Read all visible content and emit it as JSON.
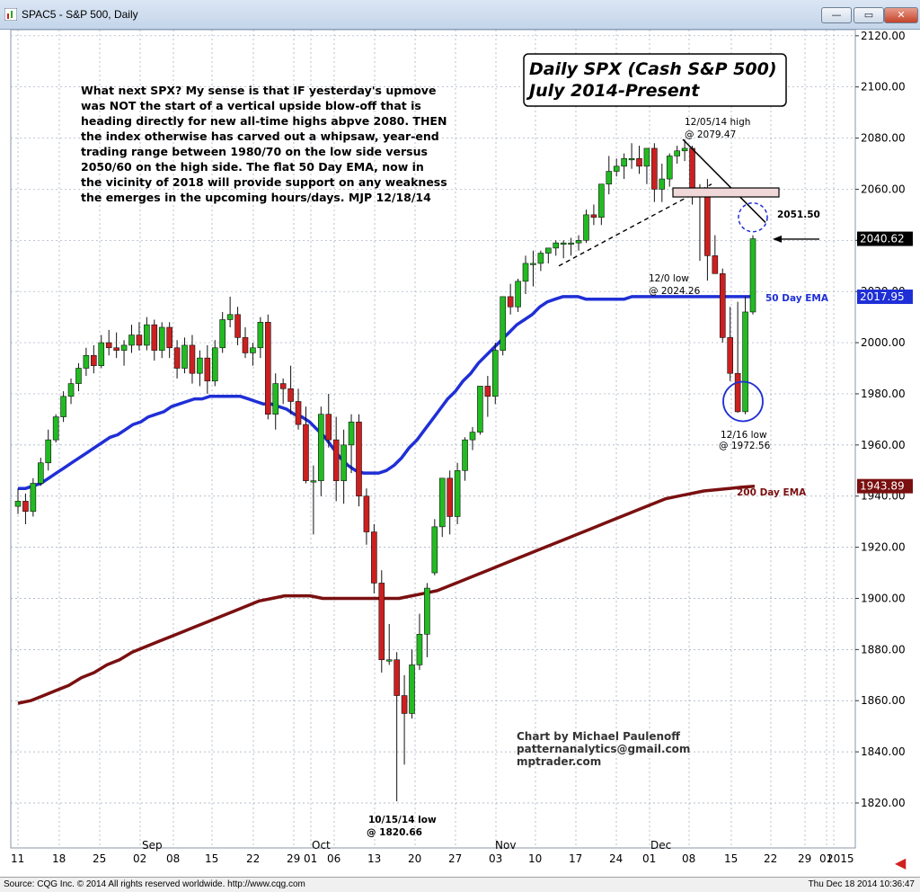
{
  "window": {
    "title": "SPAC5 - S&P 500, Daily",
    "minimize_label": "—",
    "restore_label": "▭",
    "close_label": "✕"
  },
  "status": {
    "source": "Source: CQG Inc. © 2014 All rights reserved worldwide. http://www.cqg.com",
    "datetime": "Thu Dec 18 2014 10:36:47"
  },
  "colors": {
    "up": "#22bb22",
    "down": "#cc2020",
    "ema50": "#1f2fd6",
    "ema200": "#7a1010",
    "grid": "#9aa8bb",
    "price_tag": "#000000"
  },
  "chart_data": {
    "type": "candlestick",
    "title_line1": "Daily SPX (Cash S&P 500)",
    "title_line2": "July 2014-Present",
    "commentary": [
      "What next SPX? My sense is that IF yesterday's upmove",
      "was NOT the start of a vertical upside blow-off that is",
      "heading directly for new all-time highs abpve 2080. THEN",
      "the index otherwise has carved out a whipsaw, year-end",
      "trading range between 1980/70 on the low side versus",
      "2050/60 on the high side. The flat 50 Day EMA, now in",
      "the vicinity of 2018 will provide support on any weakness",
      "the emerges in the upcoming hours/days.  MJP 12/18/14"
    ],
    "credits": [
      "Chart by Michael Paulenoff",
      "patternanalytics@gmail.com",
      "mptrader.com"
    ],
    "ylim": [
      1812,
      2124
    ],
    "y_ticks": [
      1820,
      1840,
      1860,
      1880,
      1900,
      1920,
      1940,
      1960,
      1980,
      2000,
      2020,
      2040,
      2060,
      2080,
      2100,
      2120
    ],
    "y_tick_labels": [
      "1820.00",
      "1840.00",
      "1860.00",
      "1880.00",
      "1900.00",
      "1920.00",
      "1940.00",
      "1960.00",
      "1980.00",
      "2000.00",
      "2020.00",
      "2040.00",
      "2060.00",
      "2080.00",
      "2100.00",
      "2120.00"
    ],
    "x_day_labels": [
      "11",
      "18",
      "25",
      "02",
      "08",
      "15",
      "22",
      "29",
      "01",
      "06",
      "13",
      "20",
      "27",
      "03",
      "10",
      "17",
      "24",
      "01",
      "08",
      "15",
      "22",
      "29",
      "01",
      "2015"
    ],
    "x_month_labels": [
      "Sep",
      "Oct",
      "Nov",
      "Dec"
    ],
    "price_tags": [
      {
        "label": "2040.62",
        "value": 2040.62
      },
      {
        "label": "2017.95",
        "value": 2017.95
      },
      {
        "label": "1943.89",
        "value": 1943.89
      }
    ],
    "annotations": [
      {
        "text": "12/05/14 high",
        "text2": "@ 2079.47"
      },
      {
        "text": "2051.50"
      },
      {
        "text": "12/0 low",
        "text2": "@ 2024.26"
      },
      {
        "text": "50 Day EMA"
      },
      {
        "text": "12/16 low",
        "text2": "@ 1972.56"
      },
      {
        "text": "200 Day EMA"
      },
      {
        "text": "10/15/14 low",
        "text2": "@ 1820.66"
      }
    ],
    "candles": [
      [
        1936,
        1943,
        1933,
        1938
      ],
      [
        1938,
        1941,
        1929,
        1934
      ],
      [
        1934,
        1947,
        1932,
        1945
      ],
      [
        1945,
        1955,
        1944,
        1953
      ],
      [
        1953,
        1966,
        1950,
        1962
      ],
      [
        1962,
        1972,
        1961,
        1971
      ],
      [
        1971,
        1981,
        1969,
        1979
      ],
      [
        1979,
        1986,
        1976,
        1984
      ],
      [
        1984,
        1992,
        1981,
        1990
      ],
      [
        1990,
        1998,
        1987,
        1995
      ],
      [
        1995,
        1999,
        1988,
        1991
      ],
      [
        1991,
        2003,
        1990,
        2000
      ],
      [
        2000,
        2005,
        1995,
        1998
      ],
      [
        1998,
        2004,
        1994,
        1997
      ],
      [
        1997,
        2001,
        1991,
        1999
      ],
      [
        1999,
        2007,
        1996,
        2003
      ],
      [
        2003,
        2008,
        1997,
        1999
      ],
      [
        1999,
        2010,
        1997,
        2007
      ],
      [
        2007,
        2009,
        1993,
        1997
      ],
      [
        1997,
        2008,
        1994,
        2006
      ],
      [
        2006,
        2008,
        1994,
        1998
      ],
      [
        1998,
        2001,
        1986,
        1990
      ],
      [
        1990,
        2002,
        1988,
        1999
      ],
      [
        1999,
        2003,
        1984,
        1988
      ],
      [
        1988,
        1997,
        1983,
        1994
      ],
      [
        1994,
        1999,
        1980,
        1985
      ],
      [
        1985,
        2001,
        1983,
        1998
      ],
      [
        1998,
        2012,
        1996,
        2009
      ],
      [
        2009,
        2018,
        2006,
        2011
      ],
      [
        2011,
        2014,
        1999,
        2002
      ],
      [
        2002,
        2006,
        1994,
        1996
      ],
      [
        1996,
        2000,
        1991,
        1998
      ],
      [
        1998,
        2010,
        1994,
        2008
      ],
      [
        2008,
        2011,
        1970,
        1972
      ],
      [
        1972,
        1988,
        1966,
        1984
      ],
      [
        1984,
        1986,
        1976,
        1982
      ],
      [
        1982,
        1991,
        1972,
        1977
      ],
      [
        1977,
        1982,
        1966,
        1968
      ],
      [
        1968,
        1975,
        1945,
        1946
      ],
      [
        1946,
        1952,
        1925,
        1946
      ],
      [
        1946,
        1975,
        1940,
        1972
      ],
      [
        1972,
        1980,
        1959,
        1962
      ],
      [
        1962,
        1971,
        1938,
        1946
      ],
      [
        1946,
        1966,
        1937,
        1960
      ],
      [
        1960,
        1972,
        1949,
        1969
      ],
      [
        1969,
        1972,
        1936,
        1940
      ],
      [
        1940,
        1943,
        1921,
        1926
      ],
      [
        1926,
        1929,
        1902,
        1906
      ],
      [
        1906,
        1911,
        1871,
        1876
      ],
      [
        1876,
        1890,
        1874,
        1876
      ],
      [
        1876,
        1879,
        1820.66,
        1862
      ],
      [
        1862,
        1870,
        1835,
        1855
      ],
      [
        1855,
        1880,
        1853,
        1874
      ],
      [
        1874,
        1894,
        1872,
        1886
      ],
      [
        1886,
        1906,
        1877,
        1904
      ],
      [
        1910,
        1931,
        1909,
        1928
      ],
      [
        1928,
        1946,
        1924,
        1947
      ],
      [
        1947,
        1950,
        1925,
        1932
      ],
      [
        1932,
        1953,
        1929,
        1950
      ],
      [
        1950,
        1963,
        1946,
        1962
      ],
      [
        1962,
        1967,
        1958,
        1965
      ],
      [
        1965,
        1983,
        1964,
        1983
      ],
      [
        1983,
        1987,
        1971,
        1979
      ],
      [
        1979,
        2000,
        1976,
        1997
      ],
      [
        1997,
        2017,
        1995,
        2018
      ],
      [
        2018,
        2023,
        2011,
        2014
      ],
      [
        2014,
        2025,
        2012,
        2024
      ],
      [
        2024,
        2034,
        2019,
        2031
      ],
      [
        2031,
        2036,
        2022,
        2031
      ],
      [
        2031,
        2036,
        2028,
        2035
      ],
      [
        2035,
        2036,
        2031,
        2037
      ],
      [
        2037,
        2040,
        2034,
        2039
      ],
      [
        2039,
        2040,
        2033,
        2039
      ],
      [
        2039,
        2041,
        2034,
        2039
      ],
      [
        2039,
        2042,
        2036,
        2040
      ],
      [
        2040,
        2052,
        2039,
        2050
      ],
      [
        2050,
        2054,
        2046,
        2049
      ],
      [
        2049,
        2062,
        2046,
        2062
      ],
      [
        2062,
        2073,
        2058,
        2067
      ],
      [
        2067,
        2072,
        2065,
        2069
      ],
      [
        2069,
        2074,
        2064,
        2072
      ],
      [
        2072,
        2078,
        2068,
        2072
      ],
      [
        2072,
        2077,
        2066,
        2069
      ],
      [
        2069,
        2076,
        2062,
        2076
      ],
      [
        2076,
        2078,
        2055,
        2060
      ],
      [
        2060,
        2070,
        2055,
        2064
      ],
      [
        2064,
        2074,
        2061,
        2073
      ],
      [
        2073,
        2077,
        2070,
        2075
      ],
      [
        2075,
        2079.47,
        2071,
        2076
      ],
      [
        2076,
        2077,
        2054,
        2060
      ],
      [
        2060,
        2062,
        2032,
        2060
      ],
      [
        2060,
        2064,
        2024.26,
        2034
      ],
      [
        2034,
        2042,
        2028,
        2027
      ],
      [
        2027,
        2029,
        2000,
        2002
      ],
      [
        2002,
        2014,
        1985,
        1988
      ],
      [
        1988,
        2016,
        1972.56,
        1973
      ],
      [
        1973,
        2018,
        1972,
        2012
      ],
      [
        2012,
        2042,
        2011,
        2040.62
      ]
    ],
    "ema50": [
      1943,
      1943,
      1944,
      1945,
      1947,
      1949,
      1951,
      1953,
      1955,
      1957,
      1959,
      1961,
      1963,
      1964,
      1966,
      1968,
      1969,
      1971,
      1972,
      1973,
      1975,
      1976,
      1977,
      1978,
      1978,
      1979,
      1979,
      1979,
      1979,
      1979,
      1978,
      1977,
      1976,
      1976,
      1975,
      1974,
      1972,
      1971,
      1969,
      1966,
      1963,
      1959,
      1955,
      1952,
      1950,
      1949,
      1949,
      1949,
      1950,
      1952,
      1955,
      1959,
      1962,
      1966,
      1970,
      1974,
      1978,
      1981,
      1985,
      1988,
      1992,
      1995,
      1998,
      2001,
      2004,
      2007,
      2009,
      2011,
      2014,
      2016,
      2017,
      2018,
      2018,
      2018,
      2017,
      2017,
      2017,
      2017,
      2017,
      2017,
      2018,
      2018,
      2018,
      2018,
      2018,
      2018,
      2018,
      2018,
      2018,
      2018,
      2018,
      2018,
      2018,
      2018,
      2018,
      2018,
      2018
    ],
    "ema200": [
      1859,
      1860,
      1862,
      1864,
      1866,
      1869,
      1871,
      1874,
      1876,
      1879,
      1881,
      1883,
      1885,
      1887,
      1889,
      1891,
      1893,
      1895,
      1897,
      1899,
      1900,
      1901,
      1901,
      1901,
      1900,
      1900,
      1900,
      1900,
      1900,
      1900,
      1900,
      1901,
      1902,
      1903,
      1905,
      1907,
      1909,
      1911,
      1913,
      1915,
      1917,
      1919,
      1921,
      1923,
      1925,
      1927,
      1929,
      1931,
      1933,
      1935,
      1937,
      1939,
      1940,
      1941,
      1942,
      1942.5,
      1943,
      1943.5,
      1943.89
    ]
  }
}
